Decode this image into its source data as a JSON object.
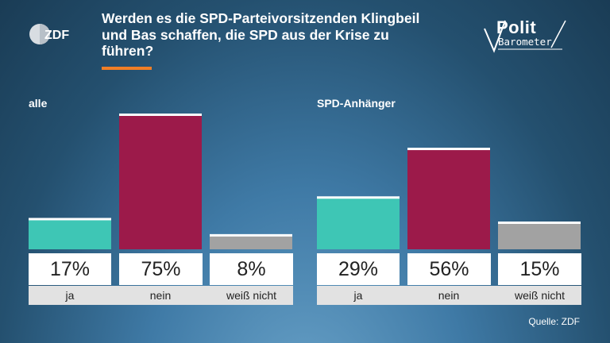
{
  "header": {
    "title_lines": [
      "Werden es die SPD-Parteivorsitzenden Klingbeil",
      "und Bas schaffen, die SPD aus der Krise zu",
      "führen?"
    ],
    "zdf_logo_text": "ZDF",
    "politbarometer_top": "Polit",
    "politbarometer_bottom": "Barometer"
  },
  "colors": {
    "ja": "#3ec6b5",
    "nein": "#9c1a4a",
    "weiss_nicht": "#a2a2a2",
    "accent": "#f07e26"
  },
  "chart_data": {
    "type": "bar",
    "ylim": [
      0,
      75
    ],
    "groups": [
      {
        "name": "alle",
        "categories": [
          "ja",
          "nein",
          "weiß nicht"
        ],
        "values": [
          17,
          75,
          8
        ],
        "labels": [
          "17%",
          "75%",
          "8%"
        ]
      },
      {
        "name": "SPD-Anhänger",
        "categories": [
          "ja",
          "nein",
          "weiß nicht"
        ],
        "values": [
          29,
          56,
          15
        ],
        "labels": [
          "29%",
          "56%",
          "15%"
        ]
      }
    ]
  },
  "footer": {
    "source": "Quelle: ZDF"
  }
}
